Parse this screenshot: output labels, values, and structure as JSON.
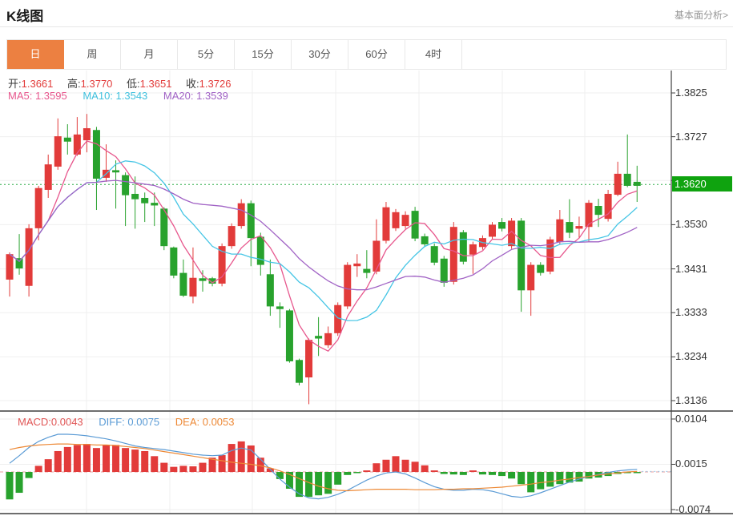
{
  "header": {
    "title": "K线图",
    "link_label": "基本面分析>"
  },
  "tabs": {
    "items": [
      {
        "label": "日",
        "active": true
      },
      {
        "label": "周",
        "active": false
      },
      {
        "label": "月",
        "active": false
      },
      {
        "label": "5分",
        "active": false
      },
      {
        "label": "15分",
        "active": false
      },
      {
        "label": "30分",
        "active": false
      },
      {
        "label": "60分",
        "active": false
      },
      {
        "label": "4时",
        "active": false
      }
    ]
  },
  "overlay": {
    "ohlc": [
      {
        "label": "开:",
        "value": "1.3661"
      },
      {
        "label": "高:",
        "value": "1.3770"
      },
      {
        "label": "低:",
        "value": "1.3651"
      },
      {
        "label": "收:",
        "value": "1.3726"
      }
    ],
    "ma": [
      {
        "text": "MA5: 1.3595"
      },
      {
        "text": "MA10: 1.3543"
      },
      {
        "text": "MA20: 1.3539"
      }
    ],
    "macd": [
      {
        "text": "MACD:0.0043"
      },
      {
        "text": "DIFF: 0.0075"
      },
      {
        "text": "DEA: 0.0053"
      }
    ]
  },
  "price_tag": {
    "value": "1.3620"
  },
  "chart_data": {
    "type": "candlestick",
    "indicator": "MACD",
    "grid": true,
    "current_price": 1.362,
    "y_ticks": [
      "1.3825",
      "1.3727",
      "1.3629",
      "1.3530",
      "1.3431",
      "1.3333",
      "1.3234",
      "1.3136"
    ],
    "y_range_top": 1.3825,
    "y_range_bottom": 1.3136,
    "macd_ticks": [
      "0.0104",
      "0.0015",
      "-0.0074"
    ],
    "ma_windows": [
      5,
      10,
      20
    ],
    "candles_ohlc_note": "each candle is [open, high, low, close]; red = close>=open, green = close<open",
    "candles": [
      [
        1.3407,
        1.3468,
        1.3369,
        1.3464
      ],
      [
        1.3455,
        1.3509,
        1.3418,
        1.3432
      ],
      [
        1.3393,
        1.3531,
        1.3369,
        1.3522
      ],
      [
        1.3522,
        1.3617,
        1.3495,
        1.3612
      ],
      [
        1.3608,
        1.3687,
        1.359,
        1.3665
      ],
      [
        1.366,
        1.3768,
        1.3653,
        1.3728
      ],
      [
        1.3725,
        1.3755,
        1.3687,
        1.3716
      ],
      [
        1.3687,
        1.3771,
        1.3684,
        1.3732
      ],
      [
        1.3719,
        1.3778,
        1.3692,
        1.3746
      ],
      [
        1.3742,
        1.3749,
        1.3563,
        1.3633
      ],
      [
        1.3635,
        1.371,
        1.3626,
        1.3653
      ],
      [
        1.3652,
        1.3674,
        1.3566,
        1.3647
      ],
      [
        1.3641,
        1.3647,
        1.3527,
        1.3596
      ],
      [
        1.3599,
        1.3638,
        1.3521,
        1.3587
      ],
      [
        1.359,
        1.3602,
        1.3536,
        1.3578
      ],
      [
        1.3579,
        1.3602,
        1.3527,
        1.3573
      ],
      [
        1.3566,
        1.3569,
        1.3473,
        1.3482
      ],
      [
        1.3479,
        1.3481,
        1.341,
        1.3416
      ],
      [
        1.3422,
        1.3452,
        1.3368,
        1.3371
      ],
      [
        1.3369,
        1.3479,
        1.3354,
        1.3411
      ],
      [
        1.341,
        1.3428,
        1.338,
        1.3404
      ],
      [
        1.341,
        1.3413,
        1.3392,
        1.3398
      ],
      [
        1.3398,
        1.3488,
        1.3392,
        1.3482
      ],
      [
        1.3482,
        1.3533,
        1.3476,
        1.3527
      ],
      [
        1.3527,
        1.3587,
        1.3521,
        1.3578
      ],
      [
        1.3578,
        1.3584,
        1.3437,
        1.35
      ],
      [
        1.3503,
        1.3512,
        1.3416,
        1.344
      ],
      [
        1.3419,
        1.3452,
        1.3326,
        1.3347
      ],
      [
        1.3347,
        1.3356,
        1.3299,
        1.3341
      ],
      [
        1.3338,
        1.3341,
        1.3221,
        1.3224
      ],
      [
        1.3227,
        1.323,
        1.317,
        1.3176
      ],
      [
        1.3188,
        1.3275,
        1.3128,
        1.3272
      ],
      [
        1.3281,
        1.3323,
        1.3236,
        1.3275
      ],
      [
        1.326,
        1.3302,
        1.3254,
        1.3287
      ],
      [
        1.3287,
        1.3356,
        1.3281,
        1.335
      ],
      [
        1.3347,
        1.3446,
        1.3341,
        1.344
      ],
      [
        1.3437,
        1.3464,
        1.3413,
        1.3443
      ],
      [
        1.3431,
        1.3473,
        1.341,
        1.3422
      ],
      [
        1.3425,
        1.3542,
        1.3419,
        1.3494
      ],
      [
        1.3494,
        1.3581,
        1.3488,
        1.3569
      ],
      [
        1.3522,
        1.3565,
        1.3516,
        1.3558
      ],
      [
        1.3527,
        1.356,
        1.3521,
        1.3552
      ],
      [
        1.3561,
        1.357,
        1.3493,
        1.3499
      ],
      [
        1.3504,
        1.351,
        1.348,
        1.3486
      ],
      [
        1.3482,
        1.3488,
        1.3439,
        1.3445
      ],
      [
        1.3454,
        1.346,
        1.3391,
        1.34
      ],
      [
        1.3402,
        1.3536,
        1.3396,
        1.3525
      ],
      [
        1.3513,
        1.3518,
        1.3441,
        1.3447
      ],
      [
        1.3463,
        1.3492,
        1.342,
        1.3486
      ],
      [
        1.348,
        1.3506,
        1.3474,
        1.35
      ],
      [
        1.3503,
        1.3536,
        1.3497,
        1.353
      ],
      [
        1.3536,
        1.3545,
        1.3515,
        1.3521
      ],
      [
        1.3482,
        1.3545,
        1.3476,
        1.3539
      ],
      [
        1.3539,
        1.3545,
        1.3335,
        1.3383
      ],
      [
        1.3383,
        1.3446,
        1.3326,
        1.344
      ],
      [
        1.344,
        1.3446,
        1.3416,
        1.3422
      ],
      [
        1.3425,
        1.3503,
        1.3419,
        1.3497
      ],
      [
        1.3491,
        1.3563,
        1.3485,
        1.3542
      ],
      [
        1.3536,
        1.3587,
        1.35,
        1.3512
      ],
      [
        1.3521,
        1.3548,
        1.35,
        1.3527
      ],
      [
        1.3525,
        1.3585,
        1.3491,
        1.3579
      ],
      [
        1.3572,
        1.3588,
        1.3525,
        1.3552
      ],
      [
        1.3543,
        1.3608,
        1.3537,
        1.3599
      ],
      [
        1.3597,
        1.3671,
        1.3594,
        1.3644
      ],
      [
        1.3644,
        1.3732,
        1.3614,
        1.3617
      ],
      [
        1.3626,
        1.3662,
        1.3581,
        1.3617
      ]
    ],
    "macd": {
      "hist": [
        -0.0054,
        -0.0041,
        -0.0012,
        0.0012,
        0.0025,
        0.0041,
        0.0049,
        0.0053,
        0.0055,
        0.0047,
        0.0052,
        0.0053,
        0.0047,
        0.0044,
        0.0041,
        0.0031,
        0.0018,
        0.001,
        0.0012,
        0.0011,
        0.0018,
        0.0028,
        0.0033,
        0.0055,
        0.006,
        0.0052,
        0.0028,
        0.0007,
        -0.0014,
        -0.0033,
        -0.0049,
        -0.0049,
        -0.0046,
        -0.0043,
        -0.0025,
        -0.0006,
        -0.0002,
        0.0003,
        0.0017,
        0.0024,
        0.0031,
        0.0024,
        0.002,
        0.0013,
        0.0003,
        -0.0004,
        -0.0005,
        -0.0006,
        0.0003,
        -0.0005,
        -0.0006,
        -0.0008,
        -0.0013,
        -0.0024,
        -0.004,
        -0.0034,
        -0.0029,
        -0.0024,
        -0.0021,
        -0.0019,
        -0.0013,
        -0.0011,
        -0.0008,
        -0.0004,
        -0.0002,
        -0.0001
      ],
      "diff": [
        0.0017,
        0.0032,
        0.0048,
        0.006,
        0.0068,
        0.0074,
        0.0074,
        0.0073,
        0.0071,
        0.0068,
        0.0065,
        0.0061,
        0.0056,
        0.0051,
        0.0048,
        0.0046,
        0.0044,
        0.0041,
        0.0038,
        0.0035,
        0.0033,
        0.0032,
        0.0033,
        0.0042,
        0.0047,
        0.0043,
        0.0025,
        0.0005,
        -0.0014,
        -0.003,
        -0.0043,
        -0.0051,
        -0.0053,
        -0.005,
        -0.0044,
        -0.0036,
        -0.0026,
        -0.0016,
        -0.0008,
        -0.0002,
        0.0,
        -0.0004,
        -0.0012,
        -0.0021,
        -0.0029,
        -0.0034,
        -0.0036,
        -0.0036,
        -0.0034,
        -0.0035,
        -0.0038,
        -0.0043,
        -0.0048,
        -0.005,
        -0.0047,
        -0.0041,
        -0.0034,
        -0.0027,
        -0.002,
        -0.0014,
        -0.0009,
        -0.0005,
        -0.0001,
        0.0002,
        0.0004,
        0.0005
      ],
      "dea": [
        0.0044,
        0.0048,
        0.0051,
        0.0053,
        0.0054,
        0.0055,
        0.0055,
        0.0054,
        0.0054,
        0.0053,
        0.0053,
        0.0052,
        0.005,
        0.0048,
        0.0046,
        0.0043,
        0.004,
        0.0037,
        0.0034,
        0.0031,
        0.0028,
        0.0025,
        0.0022,
        0.0019,
        0.0017,
        0.0015,
        0.0012,
        0.0008,
        0.0002,
        -0.0005,
        -0.0013,
        -0.0021,
        -0.0028,
        -0.0033,
        -0.0036,
        -0.0037,
        -0.0036,
        -0.0035,
        -0.0034,
        -0.0034,
        -0.0034,
        -0.0034,
        -0.0035,
        -0.0035,
        -0.0035,
        -0.0034,
        -0.0034,
        -0.0033,
        -0.0033,
        -0.0032,
        -0.0031,
        -0.003,
        -0.0028,
        -0.0026,
        -0.0024,
        -0.0021,
        -0.0019,
        -0.0016,
        -0.0014,
        -0.0011,
        -0.0009,
        -0.0006,
        -0.0004,
        -0.0002,
        0.0,
        0.0001
      ]
    },
    "colors": {
      "up": "#e23b3a",
      "down": "#28a22d",
      "ma5": "#e7578d",
      "ma10": "#45c5e5",
      "ma20": "#a163c5",
      "diff_line": "#5b9bd5",
      "dea_line": "#ed8936",
      "price_line": "#2fae48",
      "price_tag_bg": "#0fa30f",
      "tab_active_bg": "#ec8041",
      "grid": "#efefef",
      "axis": "#3f3f3f",
      "zero_dash": "#e08080"
    }
  }
}
